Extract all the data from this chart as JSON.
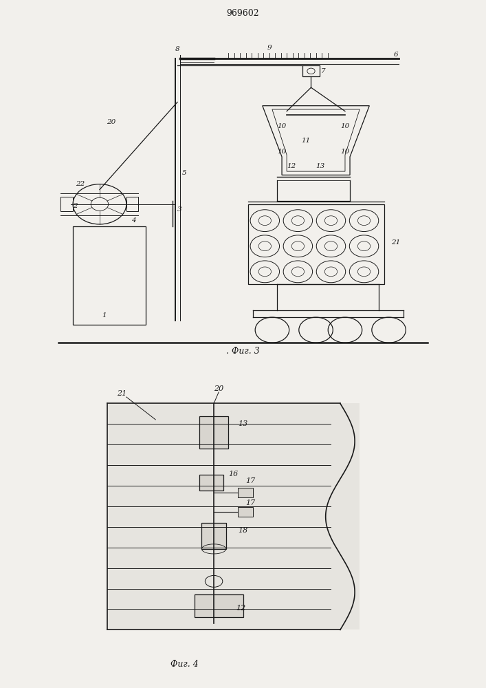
{
  "title": "969602",
  "fig3_label": ". Фиг. 3",
  "fig4_label": "Фиг. 4",
  "bg_color": "#f2f0ec",
  "line_color": "#1a1a1a",
  "fig_width": 7.07,
  "fig_height": 10.0,
  "dpi": 100
}
